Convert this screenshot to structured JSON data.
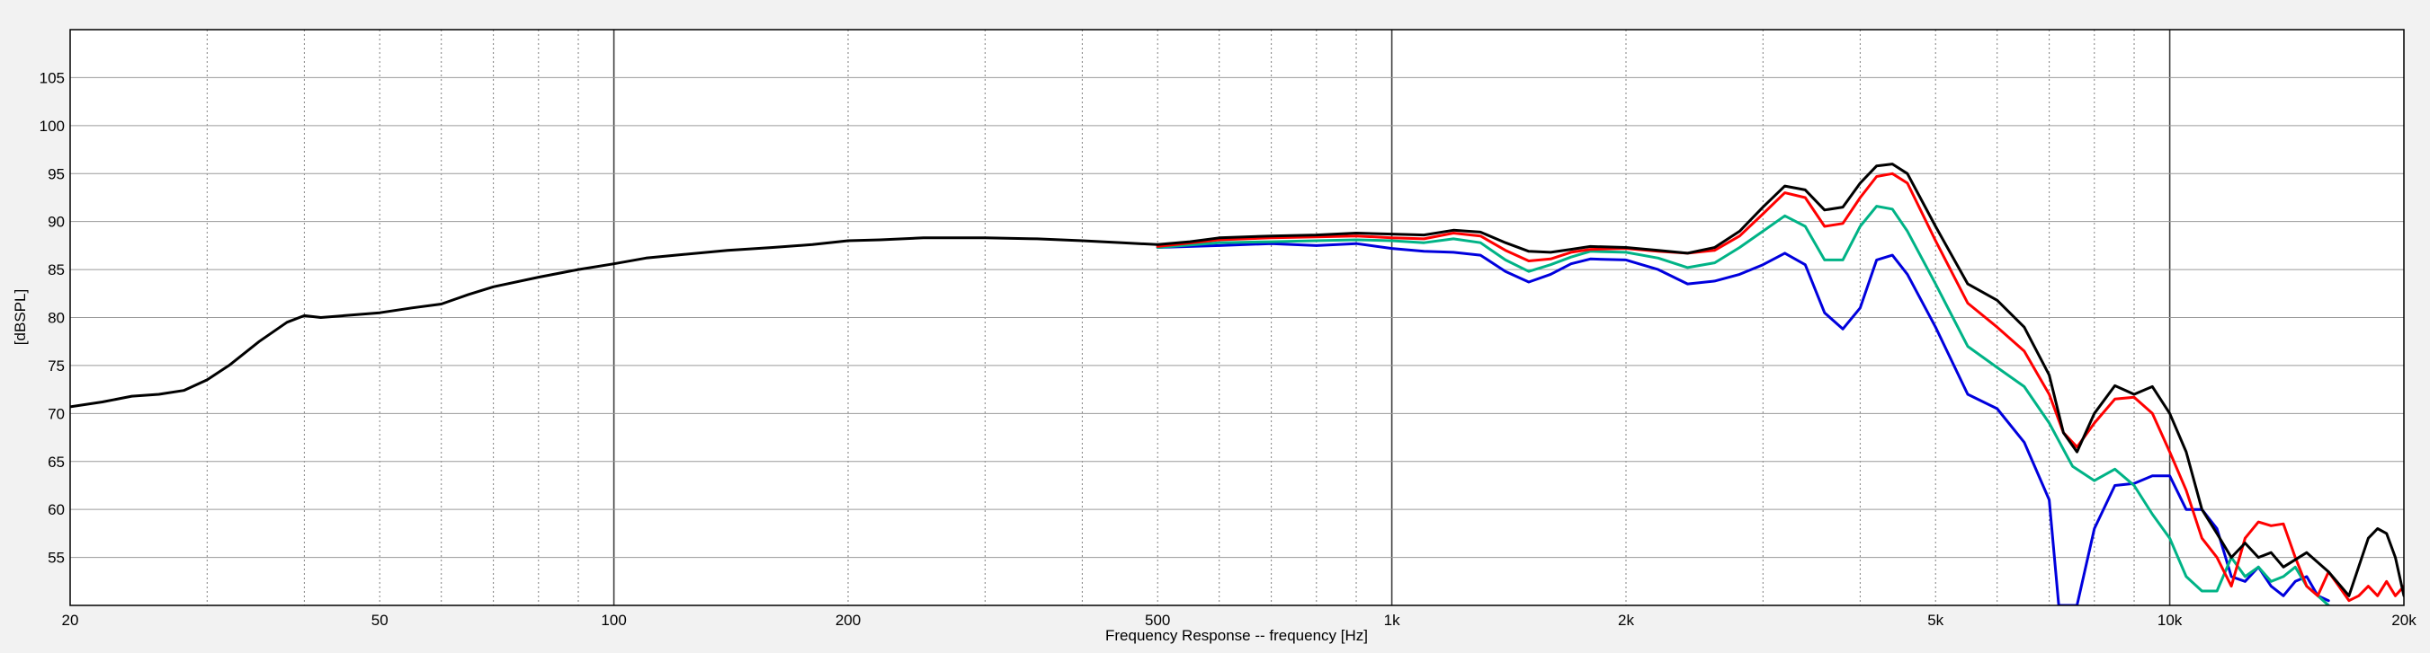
{
  "chart_data": {
    "type": "line",
    "title": "",
    "xlabel": "Frequency Response -- frequency [Hz]",
    "ylabel": "[dBSPL]",
    "x_scale": "log",
    "xlim": [
      20,
      20000
    ],
    "ylim": [
      50,
      110
    ],
    "grid": true,
    "x_ticks": [
      {
        "value": 20,
        "label": "20"
      },
      {
        "value": 50,
        "label": "50"
      },
      {
        "value": 100,
        "label": "100"
      },
      {
        "value": 200,
        "label": "200"
      },
      {
        "value": 500,
        "label": "500"
      },
      {
        "value": 1000,
        "label": "1k"
      },
      {
        "value": 2000,
        "label": "2k"
      },
      {
        "value": 5000,
        "label": "5k"
      },
      {
        "value": 10000,
        "label": "10k"
      },
      {
        "value": 20000,
        "label": "20k"
      }
    ],
    "y_ticks": [
      55,
      60,
      65,
      70,
      75,
      80,
      85,
      90,
      95,
      100,
      105
    ],
    "colors": {
      "black": "#000000",
      "red": "#ff0000",
      "green": "#00b386",
      "blue": "#0000dd",
      "grid": "#808080",
      "plot_bg": "#ffffff",
      "page_bg": "#f2f2f2"
    },
    "series": [
      {
        "color": "#000000",
        "points": [
          [
            20,
            70.7
          ],
          [
            22,
            71.2
          ],
          [
            24,
            71.8
          ],
          [
            26,
            72
          ],
          [
            28,
            72.4
          ],
          [
            30,
            73.5
          ],
          [
            32,
            75
          ],
          [
            35,
            77.5
          ],
          [
            38,
            79.5
          ],
          [
            40,
            80.2
          ],
          [
            42,
            80
          ],
          [
            45,
            80.2
          ],
          [
            50,
            80.5
          ],
          [
            55,
            81
          ],
          [
            60,
            81.4
          ],
          [
            65,
            82.4
          ],
          [
            70,
            83.2
          ],
          [
            80,
            84.2
          ],
          [
            90,
            85
          ],
          [
            100,
            85.6
          ],
          [
            110,
            86.2
          ],
          [
            120,
            86.5
          ],
          [
            140,
            87
          ],
          [
            160,
            87.3
          ],
          [
            180,
            87.6
          ],
          [
            200,
            88
          ],
          [
            220,
            88.1
          ],
          [
            250,
            88.3
          ],
          [
            300,
            88.3
          ],
          [
            350,
            88.2
          ],
          [
            400,
            88
          ],
          [
            450,
            87.8
          ],
          [
            500,
            87.6
          ],
          [
            550,
            87.9
          ],
          [
            600,
            88.3
          ],
          [
            700,
            88.5
          ],
          [
            800,
            88.6
          ],
          [
            900,
            88.8
          ],
          [
            1000,
            88.7
          ],
          [
            1100,
            88.6
          ],
          [
            1200,
            89.1
          ],
          [
            1300,
            88.9
          ],
          [
            1400,
            87.8
          ],
          [
            1500,
            86.9
          ],
          [
            1600,
            86.8
          ],
          [
            1700,
            87.1
          ],
          [
            1800,
            87.4
          ],
          [
            2000,
            87.3
          ],
          [
            2200,
            87
          ],
          [
            2400,
            86.7
          ],
          [
            2600,
            87.3
          ],
          [
            2800,
            89
          ],
          [
            3000,
            91.5
          ],
          [
            3200,
            93.7
          ],
          [
            3400,
            93.3
          ],
          [
            3600,
            91.2
          ],
          [
            3800,
            91.5
          ],
          [
            4000,
            94
          ],
          [
            4200,
            95.8
          ],
          [
            4400,
            96
          ],
          [
            4600,
            95
          ],
          [
            5000,
            89.5
          ],
          [
            5500,
            83.5
          ],
          [
            6000,
            81.8
          ],
          [
            6500,
            79
          ],
          [
            7000,
            74
          ],
          [
            7300,
            68
          ],
          [
            7600,
            66
          ],
          [
            8000,
            70
          ],
          [
            8500,
            72.9
          ],
          [
            9000,
            72
          ],
          [
            9500,
            72.8
          ],
          [
            10000,
            70
          ],
          [
            10500,
            66
          ],
          [
            11000,
            60
          ],
          [
            11500,
            57.5
          ],
          [
            12000,
            55
          ],
          [
            12500,
            56.5
          ],
          [
            13000,
            55
          ],
          [
            13500,
            55.5
          ],
          [
            14000,
            54
          ],
          [
            15000,
            55.5
          ],
          [
            16000,
            53.5
          ],
          [
            17000,
            51
          ],
          [
            18000,
            57
          ],
          [
            18500,
            58
          ],
          [
            19000,
            57.5
          ],
          [
            19500,
            55
          ],
          [
            20000,
            51
          ]
        ]
      },
      {
        "color": "#ff0000",
        "points": [
          [
            500,
            87.4
          ],
          [
            600,
            88.1
          ],
          [
            700,
            88.3
          ],
          [
            800,
            88.4
          ],
          [
            900,
            88.5
          ],
          [
            1000,
            88.3
          ],
          [
            1100,
            88.2
          ],
          [
            1200,
            88.8
          ],
          [
            1300,
            88.5
          ],
          [
            1400,
            87
          ],
          [
            1500,
            85.9
          ],
          [
            1600,
            86.1
          ],
          [
            1700,
            86.8
          ],
          [
            1800,
            87.1
          ],
          [
            2000,
            87.2
          ],
          [
            2200,
            86.9
          ],
          [
            2400,
            86.7
          ],
          [
            2600,
            87
          ],
          [
            2800,
            88.5
          ],
          [
            3000,
            90.8
          ],
          [
            3200,
            93
          ],
          [
            3400,
            92.5
          ],
          [
            3600,
            89.5
          ],
          [
            3800,
            89.8
          ],
          [
            4000,
            92.5
          ],
          [
            4200,
            94.7
          ],
          [
            4400,
            95
          ],
          [
            4600,
            94
          ],
          [
            5000,
            88
          ],
          [
            5500,
            81.5
          ],
          [
            6000,
            79
          ],
          [
            6500,
            76.5
          ],
          [
            7000,
            72
          ],
          [
            7300,
            68
          ],
          [
            7600,
            66.5
          ],
          [
            8000,
            69
          ],
          [
            8500,
            71.5
          ],
          [
            9000,
            71.7
          ],
          [
            9500,
            70
          ],
          [
            10000,
            66
          ],
          [
            10500,
            62
          ],
          [
            11000,
            57
          ],
          [
            11500,
            55
          ],
          [
            12000,
            52
          ],
          [
            12500,
            57
          ],
          [
            13000,
            58.7
          ],
          [
            13500,
            58.3
          ],
          [
            14000,
            58.5
          ],
          [
            14500,
            55
          ],
          [
            15000,
            52
          ],
          [
            15500,
            51
          ],
          [
            16000,
            53.5
          ],
          [
            16500,
            52
          ],
          [
            17000,
            50.5
          ],
          [
            17500,
            51
          ],
          [
            18000,
            52
          ],
          [
            18500,
            51
          ],
          [
            19000,
            52.5
          ],
          [
            19500,
            51
          ],
          [
            20000,
            52
          ]
        ]
      },
      {
        "color": "#00b386",
        "points": [
          [
            500,
            87.3
          ],
          [
            600,
            87.8
          ],
          [
            700,
            87.9
          ],
          [
            800,
            88
          ],
          [
            900,
            88.1
          ],
          [
            1000,
            88
          ],
          [
            1100,
            87.8
          ],
          [
            1200,
            88.2
          ],
          [
            1300,
            87.8
          ],
          [
            1400,
            86
          ],
          [
            1500,
            84.8
          ],
          [
            1600,
            85.5
          ],
          [
            1700,
            86.3
          ],
          [
            1800,
            86.9
          ],
          [
            2000,
            86.8
          ],
          [
            2200,
            86.2
          ],
          [
            2400,
            85.2
          ],
          [
            2600,
            85.7
          ],
          [
            2800,
            87.3
          ],
          [
            3000,
            89
          ],
          [
            3200,
            90.6
          ],
          [
            3400,
            89.5
          ],
          [
            3600,
            86
          ],
          [
            3800,
            86
          ],
          [
            4000,
            89.5
          ],
          [
            4200,
            91.6
          ],
          [
            4400,
            91.3
          ],
          [
            4600,
            89
          ],
          [
            5000,
            83.5
          ],
          [
            5500,
            77
          ],
          [
            6000,
            74.8
          ],
          [
            6500,
            72.8
          ],
          [
            7000,
            69
          ],
          [
            7500,
            64.5
          ],
          [
            8000,
            63
          ],
          [
            8500,
            64.2
          ],
          [
            9000,
            62.5
          ],
          [
            9500,
            59.5
          ],
          [
            10000,
            57
          ],
          [
            10500,
            53
          ],
          [
            11000,
            51.5
          ],
          [
            11500,
            51.5
          ],
          [
            12000,
            55
          ],
          [
            12500,
            53
          ],
          [
            13000,
            54
          ],
          [
            13500,
            52.5
          ],
          [
            14000,
            53
          ],
          [
            14500,
            54
          ],
          [
            15000,
            52
          ],
          [
            15500,
            51
          ],
          [
            16000,
            50
          ]
        ]
      },
      {
        "color": "#0000dd",
        "points": [
          [
            500,
            87.3
          ],
          [
            600,
            87.5
          ],
          [
            700,
            87.7
          ],
          [
            800,
            87.5
          ],
          [
            900,
            87.7
          ],
          [
            1000,
            87.2
          ],
          [
            1100,
            86.9
          ],
          [
            1200,
            86.8
          ],
          [
            1300,
            86.5
          ],
          [
            1400,
            84.8
          ],
          [
            1500,
            83.7
          ],
          [
            1600,
            84.5
          ],
          [
            1700,
            85.6
          ],
          [
            1800,
            86.1
          ],
          [
            2000,
            86
          ],
          [
            2200,
            85
          ],
          [
            2400,
            83.5
          ],
          [
            2600,
            83.8
          ],
          [
            2800,
            84.5
          ],
          [
            3000,
            85.5
          ],
          [
            3200,
            86.7
          ],
          [
            3400,
            85.5
          ],
          [
            3600,
            80.5
          ],
          [
            3800,
            78.8
          ],
          [
            4000,
            81
          ],
          [
            4200,
            86
          ],
          [
            4400,
            86.5
          ],
          [
            4600,
            84.5
          ],
          [
            5000,
            79
          ],
          [
            5500,
            72
          ],
          [
            6000,
            70.5
          ],
          [
            6500,
            67
          ],
          [
            7000,
            61
          ],
          [
            7200,
            50
          ],
          [
            7600,
            50
          ],
          [
            8000,
            58
          ],
          [
            8500,
            62.5
          ],
          [
            9000,
            62.7
          ],
          [
            9500,
            63.5
          ],
          [
            10000,
            63.5
          ],
          [
            10500,
            60
          ],
          [
            11000,
            60
          ],
          [
            11500,
            58
          ],
          [
            12000,
            53
          ],
          [
            12500,
            52.5
          ],
          [
            13000,
            54
          ],
          [
            13500,
            52
          ],
          [
            14000,
            51
          ],
          [
            14500,
            52.5
          ],
          [
            15000,
            53
          ],
          [
            15500,
            51
          ],
          [
            16000,
            50.5
          ]
        ]
      }
    ]
  }
}
